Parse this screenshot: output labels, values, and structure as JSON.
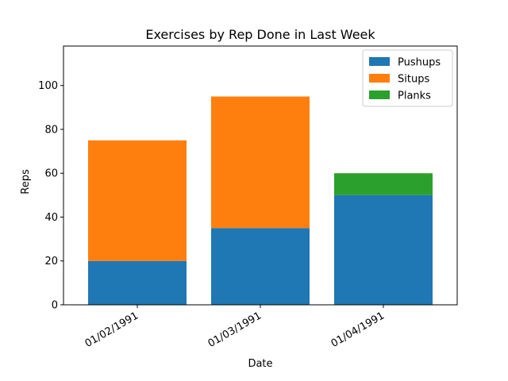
{
  "chart_data": {
    "type": "bar",
    "stacked": true,
    "title": "Exercises by Rep Done in Last Week",
    "xlabel": "Date",
    "ylabel": "Reps",
    "categories": [
      "01/02/1991",
      "01/03/1991",
      "01/04/1991"
    ],
    "series": [
      {
        "name": "Pushups",
        "values": [
          20,
          35,
          50
        ],
        "color": "#1f77b4"
      },
      {
        "name": "Situps",
        "values": [
          55,
          60,
          0
        ],
        "color": "#ff7f0e"
      },
      {
        "name": "Planks",
        "values": [
          0,
          0,
          10
        ],
        "color": "#2ca02c"
      }
    ],
    "ylim": [
      0,
      118
    ],
    "yticks": [
      0,
      20,
      40,
      60,
      80,
      100
    ],
    "grid": false,
    "legend_position": "top-right",
    "xtick_rotation": 30
  }
}
